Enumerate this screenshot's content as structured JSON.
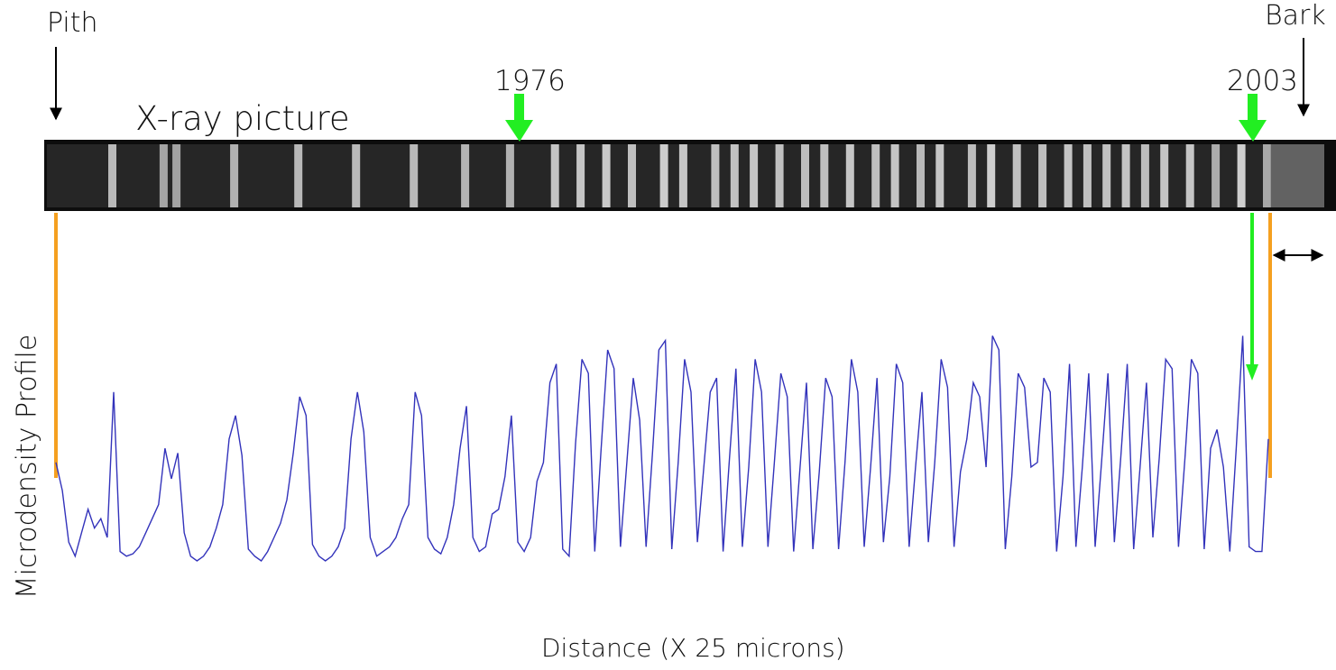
{
  "labels": {
    "pith": "Pith",
    "bark": "Bark",
    "year_start": "1976",
    "year_end": "2003",
    "xray_title": "X-ray picture",
    "profile_label": "Microdensity Profile",
    "distance_label": "Distance (X 25 microns)"
  },
  "colors": {
    "xray_background": "#0d0d0d",
    "ring_light": "#d8d8d8",
    "year_marker": "#22ee22",
    "boundary_line": "#f5a020",
    "profile_line": "#3333bb",
    "arrow": "#000000"
  },
  "chart_data": {
    "type": "line",
    "series": [
      {
        "values": [
          0.42,
          0.3,
          0.08,
          0.02,
          0.12,
          0.22,
          0.14,
          0.18,
          0.1,
          0.72,
          0.04,
          0.02,
          0.03,
          0.06,
          0.12,
          0.18,
          0.24,
          0.48,
          0.35,
          0.46,
          0.12,
          0.02,
          0.0,
          0.02,
          0.06,
          0.14,
          0.24,
          0.52,
          0.62,
          0.45,
          0.05,
          0.02,
          0.0,
          0.04,
          0.1,
          0.16,
          0.26,
          0.46,
          0.7,
          0.62,
          0.07,
          0.02,
          0.0,
          0.02,
          0.06,
          0.14,
          0.52,
          0.72,
          0.55,
          0.1,
          0.02,
          0.04,
          0.06,
          0.1,
          0.18,
          0.24,
          0.72,
          0.62,
          0.1,
          0.05,
          0.03,
          0.1,
          0.24,
          0.48,
          0.66,
          0.1,
          0.04,
          0.06,
          0.2,
          0.22,
          0.36,
          0.62,
          0.08,
          0.04,
          0.1,
          0.34,
          0.42,
          0.76,
          0.84,
          0.05,
          0.02,
          0.5,
          0.86,
          0.8,
          0.04,
          0.48,
          0.9,
          0.82,
          0.06,
          0.42,
          0.78,
          0.6,
          0.06,
          0.46,
          0.9,
          0.94,
          0.05,
          0.42,
          0.86,
          0.72,
          0.08,
          0.4,
          0.72,
          0.78,
          0.04,
          0.44,
          0.82,
          0.06,
          0.4,
          0.86,
          0.72,
          0.06,
          0.42,
          0.8,
          0.7,
          0.04,
          0.4,
          0.76,
          0.05,
          0.38,
          0.78,
          0.7,
          0.05,
          0.42,
          0.86,
          0.72,
          0.06,
          0.4,
          0.78,
          0.08,
          0.36,
          0.84,
          0.76,
          0.06,
          0.4,
          0.72,
          0.08,
          0.42,
          0.86,
          0.74,
          0.06,
          0.38,
          0.52,
          0.76,
          0.7,
          0.4,
          0.96,
          0.9,
          0.05,
          0.36,
          0.8,
          0.74,
          0.4,
          0.42,
          0.78,
          0.72,
          0.04,
          0.36,
          0.84,
          0.06,
          0.4,
          0.8,
          0.06,
          0.42,
          0.8,
          0.08,
          0.44,
          0.84,
          0.05,
          0.4,
          0.76,
          0.1,
          0.44,
          0.86,
          0.82,
          0.06,
          0.44,
          0.86,
          0.8,
          0.05,
          0.48,
          0.56,
          0.4,
          0.04,
          0.48,
          0.96,
          0.06,
          0.04,
          0.04,
          0.52
        ],
        "end_value": 0.52
      }
    ]
  }
}
